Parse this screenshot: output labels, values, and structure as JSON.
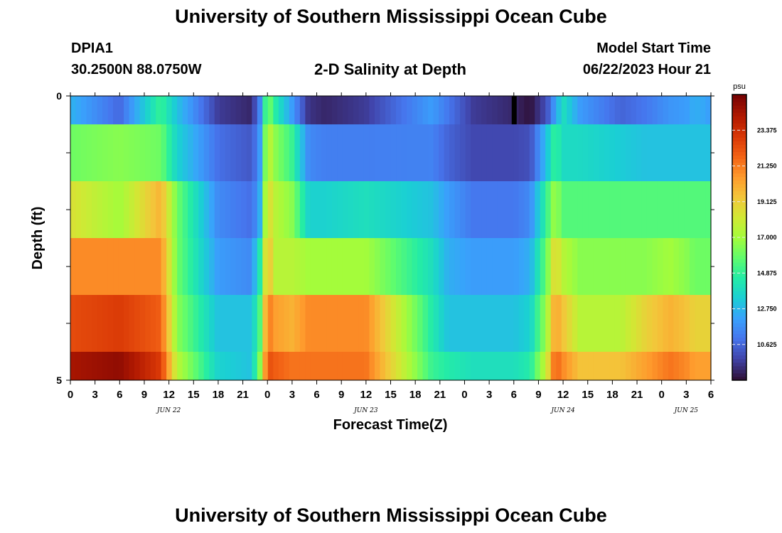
{
  "page": {
    "title_top": "University of Southern Mississippi Ocean Cube",
    "title_bottom": "University of Southern Mississippi Ocean Cube",
    "station_id": "DPIA1",
    "station_coords": "30.2500N  88.0750W",
    "plot_subtitle": "2-D Salinity at Depth",
    "model_start_label": "Model Start Time",
    "model_start_value": "06/22/2023 Hour 21"
  },
  "chart_data": {
    "type": "heatmap",
    "title": "2-D Salinity at Depth",
    "xlabel": "Forecast Time(Z)",
    "ylabel": "Depth (ft)",
    "colorbar_label": "psu",
    "colorbar_ticks": [
      "23.375",
      "21.250",
      "19.125",
      "17.000",
      "14.875",
      "12.750",
      "10.625"
    ],
    "colorbar_range": [
      8.5,
      25.5
    ],
    "colormap": [
      "#30123b",
      "#4145ab",
      "#4675ed",
      "#39a2fc",
      "#1bcfd4",
      "#24eca6",
      "#61fc6c",
      "#a4fc3b",
      "#d1e834",
      "#f3c63a",
      "#fe9b2d",
      "#f36315",
      "#d93806",
      "#b11901",
      "#7a0403"
    ],
    "ylim": [
      0,
      5
    ],
    "y_ticks": [
      "0",
      "5"
    ],
    "depth_bands": [
      0,
      0.5,
      1.5,
      2.5,
      3.5,
      4.5,
      5
    ],
    "x_tick_labels": [
      "0",
      "3",
      "6",
      "9",
      "12",
      "15",
      "18",
      "21",
      "0",
      "3",
      "6",
      "9",
      "12",
      "15",
      "18",
      "21",
      "0",
      "3",
      "6",
      "9",
      "12",
      "15",
      "18",
      "21",
      "0",
      "3",
      "6"
    ],
    "date_labels": [
      "JUN 22",
      "JUN 23",
      "JUN 24",
      "JUN 25"
    ],
    "x_hours": [
      0,
      78
    ],
    "time_points": [
      0,
      6,
      11,
      13,
      18,
      22,
      23,
      24,
      25,
      27,
      29,
      31,
      36,
      44,
      46,
      49,
      54,
      56,
      58,
      59,
      60,
      62,
      67,
      70,
      73,
      75,
      76,
      77,
      78
    ],
    "series": [
      {
        "depth_level": 0,
        "values": [
          12.6,
          10.6,
          15.0,
          13.0,
          9.5,
          9.0,
          11.0,
          16.5,
          14.5,
          12.0,
          9.3,
          9.0,
          9.5,
          12.0,
          11.0,
          9.5,
          9.0,
          8.5,
          10.0,
          12.0,
          14.0,
          12.0,
          10.5,
          11.0,
          11.8,
          12.0,
          12.5,
          12.3,
          12.0
        ]
      },
      {
        "depth_level": 1,
        "values": [
          16.0,
          16.5,
          16.0,
          13.5,
          10.8,
          10.2,
          11.5,
          18.0,
          16.5,
          15.0,
          11.5,
          11.2,
          11.2,
          11.3,
          10.5,
          9.8,
          9.8,
          10.0,
          13.0,
          15.0,
          13.8,
          13.8,
          13.3,
          13.0,
          13.0,
          13.0,
          13.0,
          13.0,
          13.0
        ]
      },
      {
        "depth_level": 2,
        "values": [
          18.5,
          17.0,
          20.0,
          16.0,
          11.5,
          10.8,
          12.0,
          19.0,
          17.5,
          16.5,
          13.5,
          13.5,
          14.0,
          13.0,
          12.0,
          11.0,
          11.0,
          11.5,
          15.0,
          17.0,
          15.5,
          15.5,
          15.5,
          15.5,
          15.5,
          15.5,
          15.5,
          15.5,
          15.5
        ]
      },
      {
        "depth_level": 3,
        "values": [
          21.0,
          21.0,
          21.0,
          16.0,
          12.0,
          11.5,
          14.0,
          20.0,
          17.5,
          17.5,
          17.0,
          17.0,
          17.0,
          14.0,
          12.5,
          12.0,
          12.0,
          12.5,
          16.0,
          19.0,
          17.5,
          16.5,
          16.5,
          16.5,
          17.0,
          16.5,
          16.0,
          16.0,
          16.0
        ]
      },
      {
        "depth_level": 4,
        "values": [
          22.5,
          23.0,
          22.0,
          16.5,
          13.0,
          13.0,
          15.0,
          21.5,
          20.5,
          20.0,
          21.0,
          21.0,
          21.0,
          14.5,
          13.0,
          13.0,
          13.0,
          13.5,
          17.0,
          20.5,
          19.5,
          17.5,
          17.5,
          19.0,
          20.0,
          19.5,
          19.0,
          19.0,
          19.0
        ]
      },
      {
        "depth_level": 5,
        "values": [
          24.5,
          25.0,
          23.0,
          17.5,
          13.5,
          13.0,
          16.0,
          22.5,
          22.0,
          21.5,
          21.5,
          21.5,
          21.5,
          15.0,
          14.5,
          14.0,
          14.0,
          14.5,
          18.0,
          22.0,
          21.0,
          19.5,
          19.5,
          20.5,
          21.5,
          21.0,
          20.5,
          20.5,
          20.5
        ]
      }
    ],
    "marker": {
      "type": "vertical-bar",
      "hour": 54,
      "depth_band": 0,
      "color": "#000000"
    }
  }
}
